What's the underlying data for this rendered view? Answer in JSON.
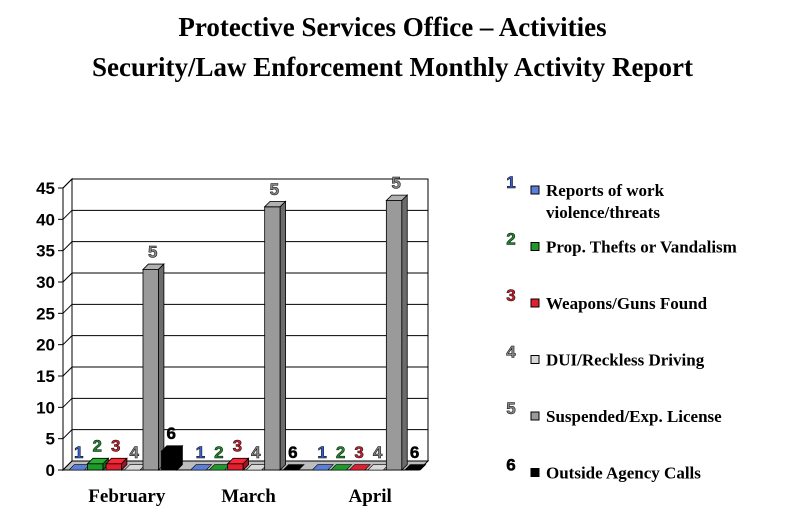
{
  "title_line1": "Protective Services Office – Activities",
  "title_line2": "Security/Law Enforcement Monthly Activity Report",
  "chart_data": {
    "type": "bar",
    "categories": [
      "February",
      "March",
      "April"
    ],
    "ylim": [
      0,
      45
    ],
    "yticks": [
      0,
      5,
      10,
      15,
      20,
      25,
      30,
      35,
      40,
      45
    ],
    "grid": true,
    "legend_position": "right",
    "series": [
      {
        "name": "Reports of work violence/threats",
        "legend_lines": [
          "Reports of work",
          "violence/threats"
        ],
        "marker": "1",
        "color": "#5b7fd6",
        "label_color": "#3a5fc8",
        "values": [
          0,
          0,
          0
        ]
      },
      {
        "name": "Prop. Thefts or Vandalism",
        "legend_lines": [
          "Prop. Thefts or Vandalism"
        ],
        "marker": "2",
        "color": "#1f9a2a",
        "label_color": "#1f8a2a",
        "values": [
          1,
          0,
          0
        ]
      },
      {
        "name": "Weapons/Guns Found",
        "legend_lines": [
          "Weapons/Guns Found"
        ],
        "marker": "3",
        "color": "#e02030",
        "label_color": "#c81e2e",
        "values": [
          1,
          1,
          0
        ]
      },
      {
        "name": "DUI/Reckless Driving",
        "legend_lines": [
          "DUI/Reckless Driving"
        ],
        "marker": "4",
        "color": "#d8d8d8",
        "label_color": "#888888",
        "values": [
          0,
          0,
          0
        ]
      },
      {
        "name": "Suspended/Exp. License",
        "legend_lines": [
          "Suspended/Exp. License"
        ],
        "marker": "5",
        "color": "#9a9a9a",
        "label_color": "#888888",
        "values": [
          32,
          42,
          43
        ]
      },
      {
        "name": "Outside Agency Calls",
        "legend_lines": [
          "Outside Agency Calls"
        ],
        "marker": "6",
        "color": "#000000",
        "label_color": "#000000",
        "values": [
          3,
          0,
          0
        ]
      }
    ]
  }
}
